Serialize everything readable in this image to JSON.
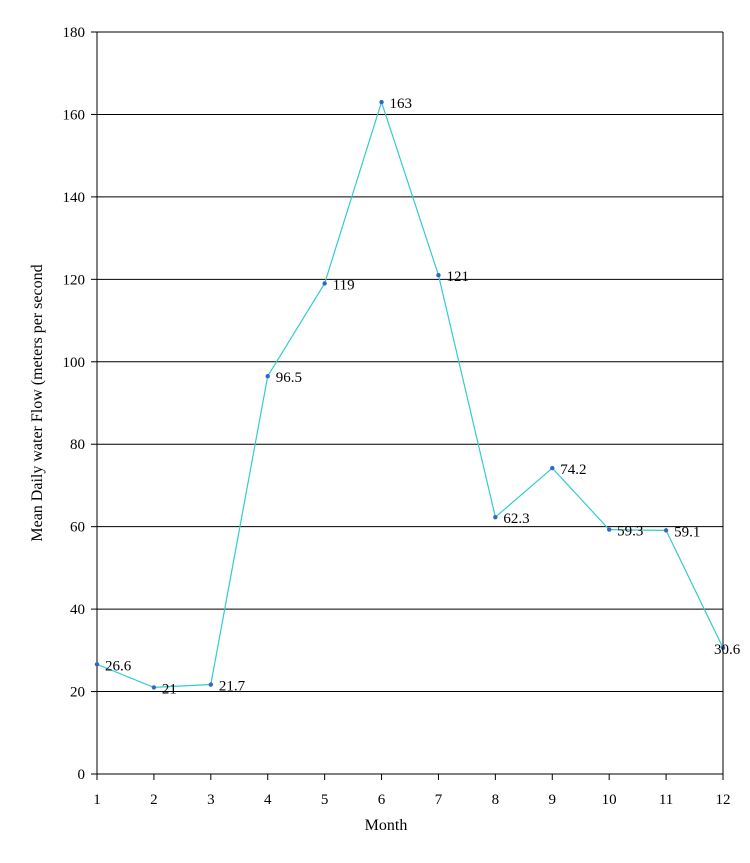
{
  "chart_data": {
    "type": "line",
    "title": "",
    "xlabel": "Month",
    "ylabel": "Mean Daily water Flow (meters per second",
    "x": [
      1,
      2,
      3,
      4,
      5,
      6,
      7,
      8,
      9,
      10,
      11,
      12
    ],
    "series": [
      {
        "values": [
          26.6,
          21,
          21.7,
          96.5,
          119,
          163,
          121,
          62.3,
          74.2,
          59.3,
          59.1,
          30.6
        ],
        "labels": [
          "26.6",
          "21",
          "21.7",
          "96.5",
          "119",
          "163",
          "121",
          "62.3",
          "74.2",
          "59.3",
          "59.1",
          "30.6"
        ]
      }
    ],
    "xlim": [
      1,
      12
    ],
    "ylim": [
      0,
      180
    ],
    "yticks": [
      0,
      20,
      40,
      60,
      80,
      100,
      120,
      140,
      160,
      180
    ],
    "xticks": [
      1,
      2,
      3,
      4,
      5,
      6,
      7,
      8,
      9,
      10,
      11,
      12
    ],
    "grid": "horizontal",
    "legend": "none",
    "colors": {
      "line": "#33cccc",
      "marker": "#3366cc",
      "grid": "#000000",
      "axis": "#000000"
    }
  }
}
